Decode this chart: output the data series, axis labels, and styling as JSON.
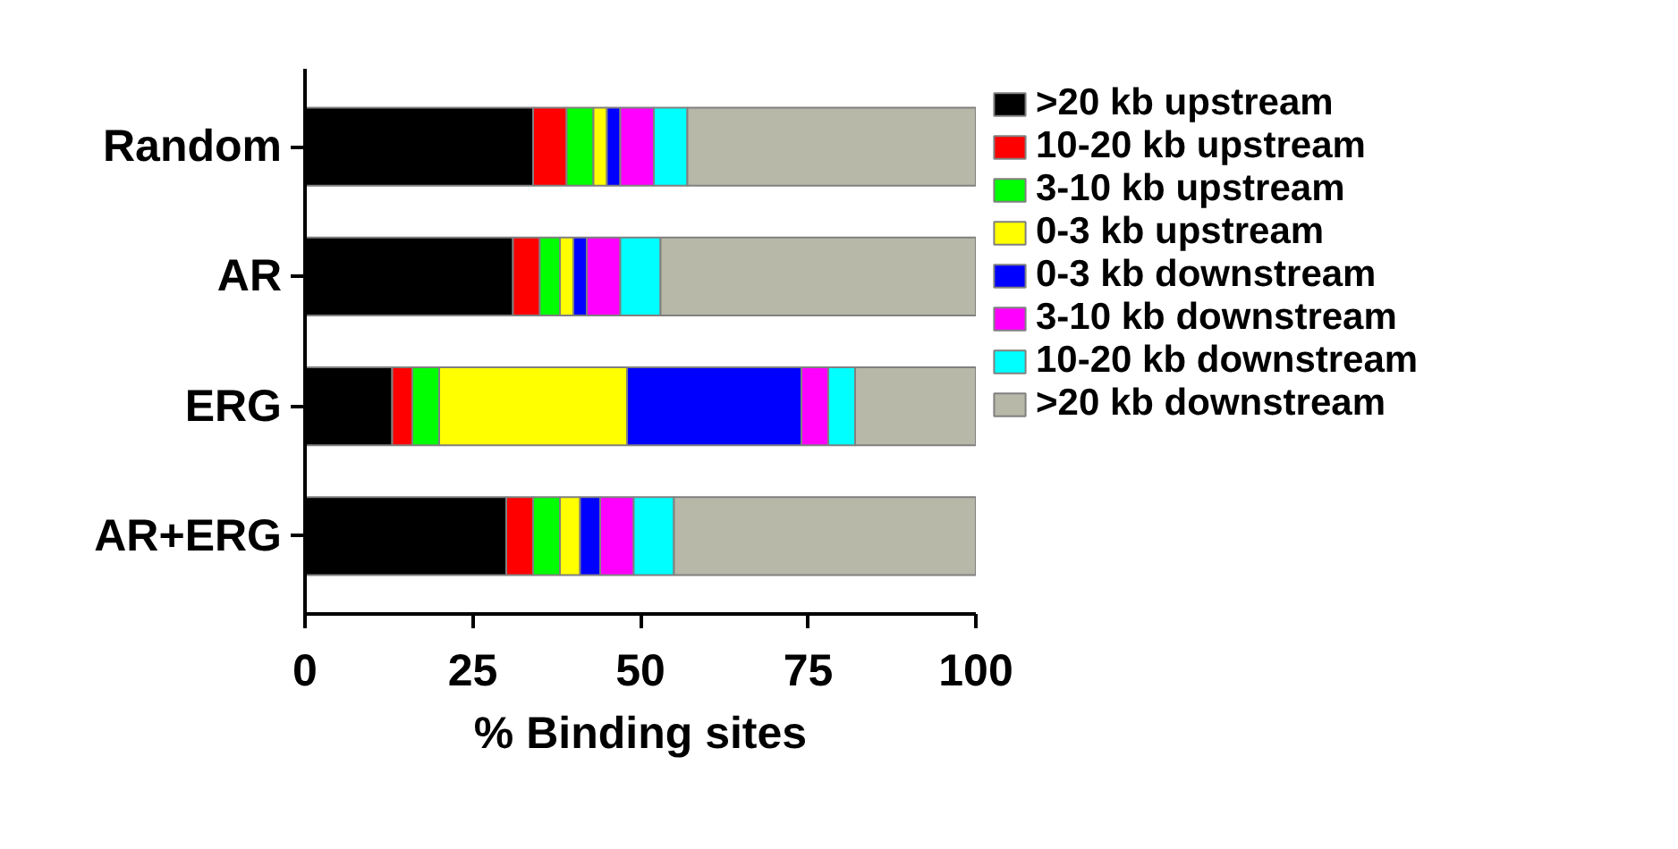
{
  "chart_data": {
    "type": "bar",
    "orientation": "horizontal",
    "stacked": true,
    "xlabel": "% Binding sites",
    "categories": [
      "Random",
      "AR",
      "ERG",
      "AR+ERG"
    ],
    "xlim": [
      0,
      100
    ],
    "xticks": [
      0,
      25,
      50,
      75,
      100
    ],
    "grid": false,
    "legend": "right",
    "series": [
      {
        "name": ">20 kb upstream",
        "color": "#000000",
        "values": [
          34,
          31,
          13,
          30
        ]
      },
      {
        "name": "10-20 kb upstream",
        "color": "#ff0000",
        "values": [
          5,
          4,
          3,
          4
        ]
      },
      {
        "name": "3-10 kb upstream",
        "color": "#00ff00",
        "values": [
          4,
          3,
          4,
          4
        ]
      },
      {
        "name": "0-3 kb upstream",
        "color": "#ffff00",
        "values": [
          2,
          2,
          28,
          3
        ]
      },
      {
        "name": "0-3 kb downstream",
        "color": "#0000ff",
        "values": [
          2,
          2,
          26,
          3
        ]
      },
      {
        "name": "3-10 kb downstream",
        "color": "#ff00ff",
        "values": [
          5,
          5,
          4,
          5
        ]
      },
      {
        "name": "10-20 kb downstream",
        "color": "#00ffff",
        "values": [
          5,
          6,
          4,
          6
        ]
      },
      {
        "name": ">20 kb downstream",
        "color": "#b8b8a8",
        "values": [
          43,
          47,
          18,
          45
        ]
      }
    ]
  }
}
